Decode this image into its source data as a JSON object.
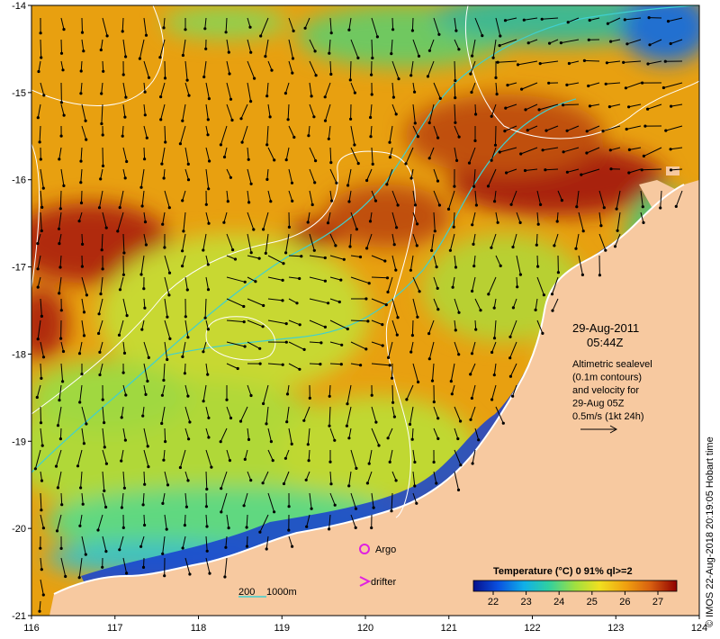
{
  "map": {
    "date": "29-Aug-2011",
    "time": "05:44Z",
    "description_lines": [
      "Altimetric sealevel",
      "(0.1m contours)",
      "and velocity for",
      "29-Aug 05Z",
      "0.5m/s (1kt 24h)"
    ],
    "credit": "© IMOS 22-Aug-2018 20:19:05 Hobart time",
    "legend": {
      "argo_label": "Argo",
      "drifter_label": "drifter",
      "depth_label_200": "200",
      "depth_label_1000": "1000m"
    },
    "x_ticks": [
      "116",
      "117",
      "118",
      "119",
      "120",
      "121",
      "122",
      "123",
      "124"
    ],
    "y_ticks": [
      "-14",
      "-15",
      "-16",
      "-17",
      "-18",
      "-19",
      "-20",
      "-21"
    ],
    "colorbar": {
      "title": "Temperature (°C) 0 91% ql>=2",
      "ticks": [
        "22",
        "23",
        "24",
        "25",
        "26",
        "27"
      ]
    },
    "colors": {
      "land": "#f7c9a0",
      "isobath": "#3fd0d0",
      "contour": "#ffffff",
      "argo": "#e020e0",
      "arrow": "#000000"
    }
  }
}
